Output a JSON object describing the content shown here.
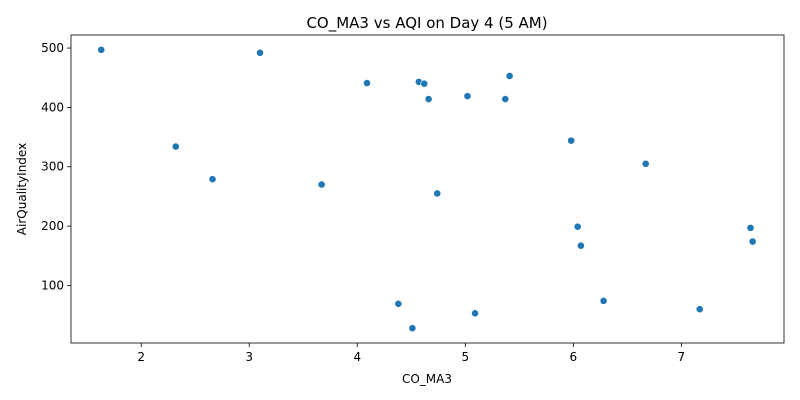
{
  "chart_data": {
    "type": "scatter",
    "title": "CO_MA3 vs AQI on Day 4 (5 AM)",
    "xlabel": "CO_MA3",
    "ylabel": "AirQualityIndex",
    "xlim": [
      1.35,
      7.95
    ],
    "ylim": [
      3,
      522
    ],
    "xticks": [
      2,
      3,
      4,
      5,
      6,
      7
    ],
    "yticks": [
      100,
      200,
      300,
      400,
      500
    ],
    "grid": false,
    "marker_color": "#1f77b4",
    "points": [
      {
        "x": 1.63,
        "y": 497
      },
      {
        "x": 3.1,
        "y": 492
      },
      {
        "x": 4.09,
        "y": 441
      },
      {
        "x": 4.57,
        "y": 443
      },
      {
        "x": 4.62,
        "y": 440
      },
      {
        "x": 5.41,
        "y": 453
      },
      {
        "x": 4.66,
        "y": 414
      },
      {
        "x": 5.02,
        "y": 419
      },
      {
        "x": 5.37,
        "y": 414
      },
      {
        "x": 2.32,
        "y": 334
      },
      {
        "x": 5.98,
        "y": 344
      },
      {
        "x": 6.67,
        "y": 305
      },
      {
        "x": 2.66,
        "y": 279
      },
      {
        "x": 3.67,
        "y": 270
      },
      {
        "x": 4.74,
        "y": 255
      },
      {
        "x": 6.04,
        "y": 199
      },
      {
        "x": 7.64,
        "y": 197
      },
      {
        "x": 6.07,
        "y": 167
      },
      {
        "x": 7.66,
        "y": 174
      },
      {
        "x": 4.38,
        "y": 69
      },
      {
        "x": 6.28,
        "y": 74
      },
      {
        "x": 5.09,
        "y": 53
      },
      {
        "x": 7.17,
        "y": 60
      },
      {
        "x": 4.51,
        "y": 28
      }
    ]
  }
}
